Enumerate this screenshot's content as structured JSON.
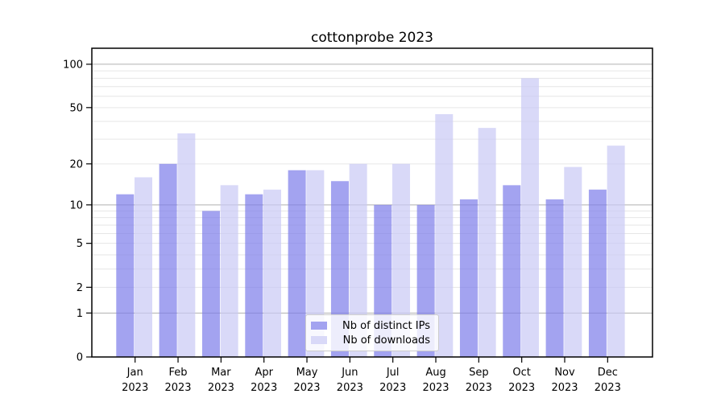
{
  "chart_data": {
    "type": "bar",
    "title": "cottonprobe 2023",
    "categories": [
      "Jan 2023",
      "Feb 2023",
      "Mar 2023",
      "Apr 2023",
      "May 2023",
      "Jun 2023",
      "Jul 2023",
      "Aug 2023",
      "Sep 2023",
      "Oct 2023",
      "Nov 2023",
      "Dec 2023"
    ],
    "series": [
      {
        "name": "Nb of distinct IPs",
        "color": "#a3a3f0",
        "values": [
          12,
          20,
          9,
          12,
          18,
          15,
          10,
          10,
          11,
          14,
          11,
          13
        ]
      },
      {
        "name": "Nb of downloads",
        "color": "#d9d9f8",
        "values": [
          16,
          33,
          14,
          13,
          18,
          20,
          20,
          45,
          36,
          80,
          19,
          27
        ]
      }
    ],
    "yscale": "log1p",
    "ylim": [
      0,
      129
    ],
    "yticks": [
      0,
      1,
      2,
      5,
      10,
      20,
      50,
      100
    ],
    "decade_gridlines": [
      1,
      10,
      100
    ],
    "minor_gridlines": [
      3,
      4,
      6,
      7,
      8,
      9,
      30,
      40,
      60,
      70,
      80,
      90
    ],
    "grid": true,
    "legend_position": "lower center",
    "colors": {
      "grid_minor": "#e6e6e6",
      "grid_decade": "#b0b0b0",
      "spine": "#000000",
      "text": "#000000"
    }
  }
}
